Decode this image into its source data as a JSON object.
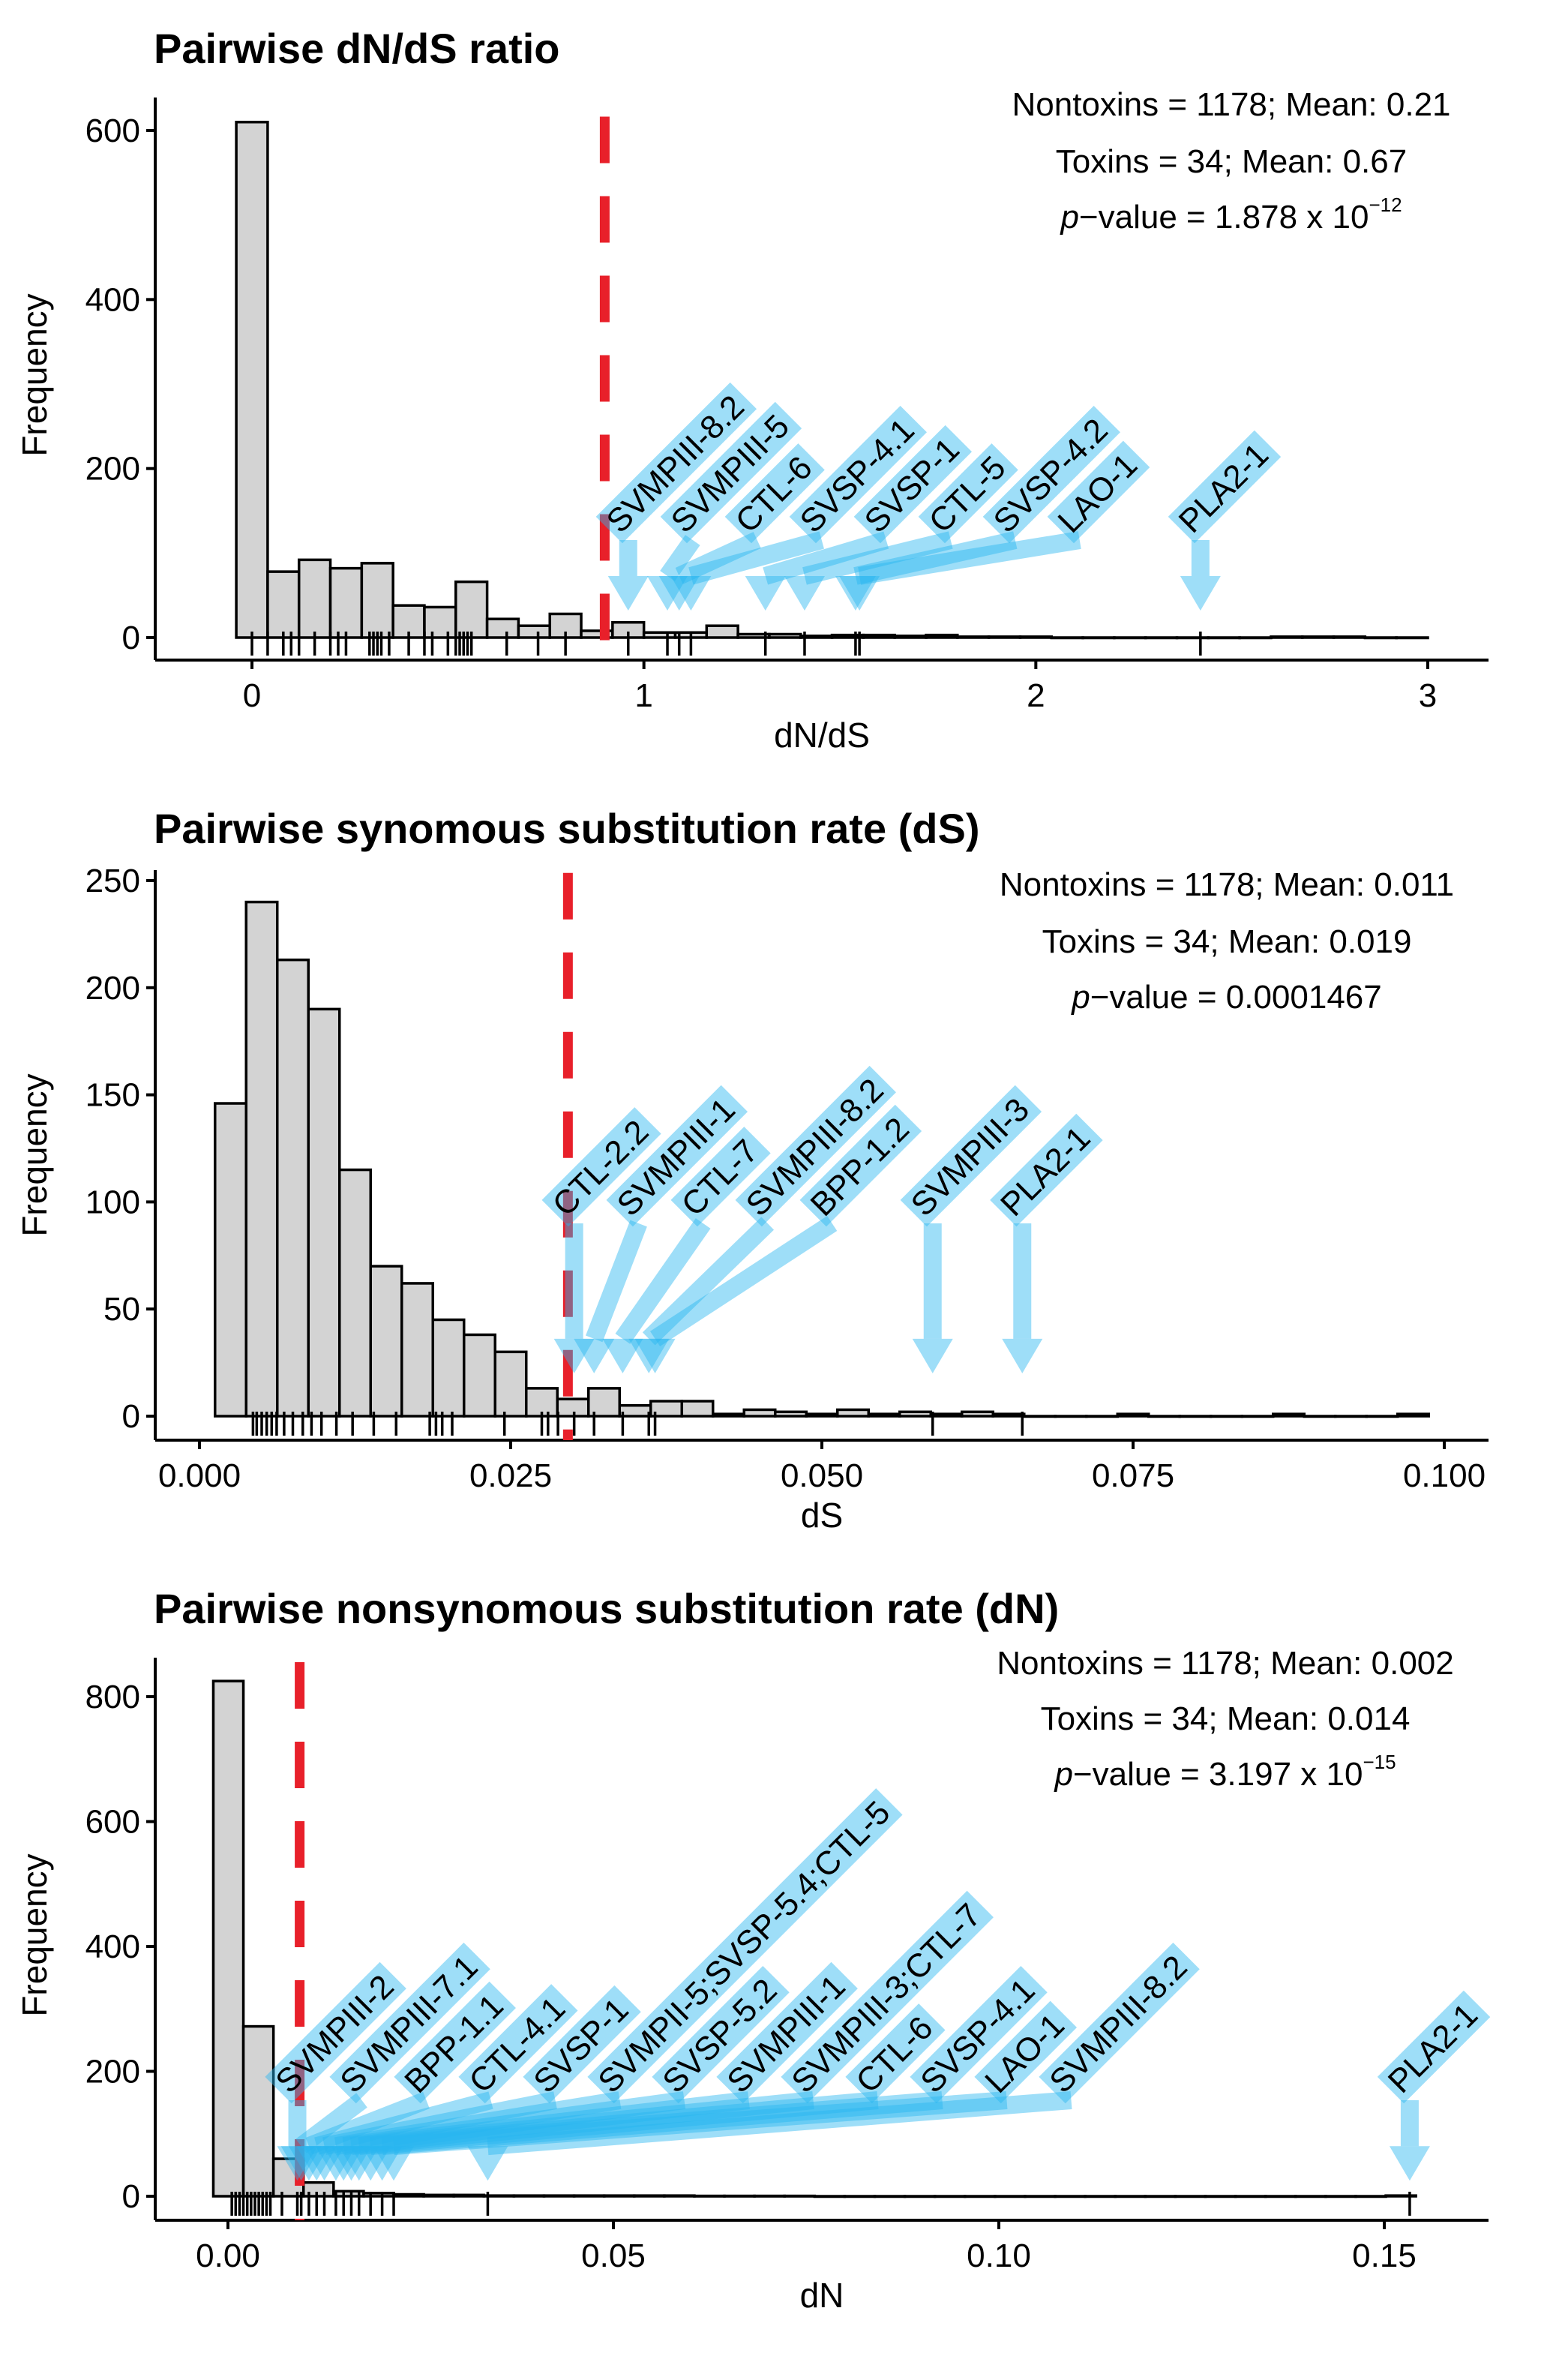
{
  "colors": {
    "bar_fill": "#d3d3d3",
    "bar_stroke": "#000000",
    "mean_line": "#e8202a",
    "arrow": "#29b6ef"
  },
  "chart_data": [
    {
      "type": "bar",
      "title": "Pairwise dN/dS ratio",
      "xlabel": "dN/dS",
      "ylabel": "Frequency",
      "xlim": [
        -0.15,
        3.15
      ],
      "ylim": [
        0,
        620
      ],
      "xticks": [
        0,
        1,
        2,
        3
      ],
      "xtick_labels": [
        "0",
        "1",
        "2",
        "3"
      ],
      "yticks": [
        0,
        200,
        400,
        600
      ],
      "ytick_labels": [
        "0",
        "200",
        "400",
        "600"
      ],
      "bin_start": -0.04,
      "bin_width": 0.08,
      "counts": [
        610,
        78,
        92,
        82,
        88,
        38,
        36,
        66,
        22,
        14,
        28,
        8,
        18,
        6,
        6,
        14,
        4,
        4,
        2,
        3,
        3,
        2,
        3,
        1,
        1,
        1,
        0,
        0,
        0,
        0,
        0,
        0,
        0,
        1,
        1,
        1,
        0,
        0
      ],
      "toxin_mean_line": 0.9,
      "rug": [
        0.0,
        0.04,
        0.08,
        0.1,
        0.12,
        0.16,
        0.2,
        0.22,
        0.24,
        0.3,
        0.31,
        0.32,
        0.33,
        0.35,
        0.4,
        0.44,
        0.46,
        0.5,
        0.52,
        0.53,
        0.54,
        0.55,
        0.56,
        0.65,
        0.73,
        0.8,
        0.96,
        1.06,
        1.09,
        1.12,
        1.31,
        1.41,
        1.54,
        1.55,
        2.42
      ],
      "stats": {
        "line1": "Nontoxins = 1178; Mean: 0.21",
        "line2": "Toxins = 34; Mean: 0.67",
        "p_italic": "p",
        "p_text": "−value = 1.878 x 10",
        "p_exp": "−12"
      },
      "annotations": [
        {
          "label": "SVMPIII-8.2",
          "x": 0.96,
          "tail": 190,
          "tip": 32
        },
        {
          "label": "SVMPIII-5",
          "x": 1.06,
          "tail": 175,
          "tip": 32
        },
        {
          "label": "CTL-6",
          "x": 1.09,
          "tail": 140,
          "tip": 32
        },
        {
          "label": "SVSP-4.1",
          "x": 1.12,
          "tail": 95,
          "tip": 32
        },
        {
          "label": "SVSP-1",
          "x": 1.31,
          "tail": 140,
          "tip": 32
        },
        {
          "label": "CTL-5",
          "x": 1.41,
          "tail": 120,
          "tip": 32
        },
        {
          "label": "SVSP-4.2",
          "x": 1.54,
          "tail": 140,
          "tip": 32
        },
        {
          "label": "LAO-1",
          "x": 1.55,
          "tail": 100,
          "tip": 32
        },
        {
          "label": "PLA2-1",
          "x": 2.42,
          "tail": 100,
          "tip": 32
        }
      ]
    },
    {
      "type": "bar",
      "title": "Pairwise synomous substitution rate (dS)",
      "xlabel": "dS",
      "ylabel": "Frequency",
      "xlim": [
        -0.004,
        0.1
      ],
      "ylim": [
        0,
        255
      ],
      "xticks": [
        0,
        0.025,
        0.05,
        0.075,
        0.1
      ],
      "xtick_labels": [
        "0.000",
        "0.025",
        "0.050",
        "0.075",
        "0.100"
      ],
      "yticks": [
        0,
        50,
        100,
        150,
        200,
        250
      ],
      "ytick_labels": [
        "0",
        "50",
        "100",
        "150",
        "200",
        "250"
      ],
      "bin_start": 0.00125,
      "bin_width": 0.0025,
      "counts": [
        146,
        240,
        213,
        190,
        115,
        70,
        62,
        45,
        38,
        30,
        13,
        8,
        13,
        5,
        7,
        7,
        1,
        3,
        2,
        1,
        3,
        1,
        2,
        1,
        2,
        1,
        0,
        0,
        0,
        1,
        0,
        0,
        0,
        0,
        1,
        0,
        0,
        0,
        1
      ],
      "toxin_mean_line": 0.0296,
      "rug": [
        0.0043,
        0.0046,
        0.005,
        0.0054,
        0.0058,
        0.0062,
        0.0068,
        0.0075,
        0.0083,
        0.009,
        0.0098,
        0.011,
        0.0123,
        0.014,
        0.0158,
        0.0185,
        0.019,
        0.0195,
        0.0203,
        0.0245,
        0.0275,
        0.028,
        0.0288,
        0.0301,
        0.0317,
        0.034,
        0.0361,
        0.0366,
        0.0589,
        0.0661
      ],
      "stats": {
        "line1": "Nontoxins = 1178; Mean: 0.011",
        "line2": "Toxins = 34; Mean: 0.019",
        "p_italic": "p",
        "p_text": "−value = 0.0001467",
        "p_exp": ""
      },
      "annotations": [
        {
          "label": "CTL-2.2",
          "x": 0.0301,
          "tail": 85,
          "tip": 20
        },
        {
          "label": "SVMPIII-1",
          "x": 0.0317,
          "tail": 70,
          "tip": 20
        },
        {
          "label": "CTL-7",
          "x": 0.034,
          "tail": 85,
          "tip": 20
        },
        {
          "label": "SVMPIII-8.2",
          "x": 0.0361,
          "tail": 75,
          "tip": 20
        },
        {
          "label": "BPP-1.2",
          "x": 0.0366,
          "tail": 40,
          "tip": 20
        },
        {
          "label": "SVMPIII-3",
          "x": 0.0589,
          "tail": 40,
          "tip": 20
        },
        {
          "label": "PLA2-1",
          "x": 0.0661,
          "tail": 40,
          "tip": 20
        }
      ]
    },
    {
      "type": "bar",
      "title": "Pairwise nonsynomous substitution rate (dN)",
      "xlabel": "dN",
      "ylabel": "Frequency",
      "xlim": [
        -0.009,
        0.163
      ],
      "ylim": [
        0,
        860
      ],
      "xticks": [
        0,
        0.05,
        0.1,
        0.15
      ],
      "xtick_labels": [
        "0.00",
        "0.05",
        "0.10",
        "0.15"
      ],
      "yticks": [
        0,
        200,
        400,
        600,
        800
      ],
      "ytick_labels": [
        "0",
        "200",
        "400",
        "600",
        "800"
      ],
      "bin_start": -0.0019,
      "bin_width": 0.0039,
      "counts": [
        825,
        272,
        60,
        22,
        8,
        5,
        3,
        2,
        2,
        1,
        1,
        1,
        1,
        1,
        1,
        1,
        0.5,
        0.5,
        0.5,
        0.5,
        0,
        0,
        0,
        0,
        0,
        0,
        0,
        0,
        0,
        0,
        0,
        0,
        0,
        0,
        0,
        0,
        0,
        0,
        0,
        1
      ],
      "toxin_mean_line": 0.0093,
      "rug": [
        0.0005,
        0.001,
        0.0015,
        0.002,
        0.0025,
        0.003,
        0.0035,
        0.004,
        0.0045,
        0.005,
        0.0055,
        0.007,
        0.009,
        0.0095,
        0.0105,
        0.0115,
        0.0125,
        0.014,
        0.015,
        0.016,
        0.017,
        0.0185,
        0.02,
        0.0215,
        0.0337,
        0.1533
      ],
      "stats": {
        "line1": "Nontoxins = 1178; Mean: 0.002",
        "line2": "Toxins = 34; Mean: 0.014",
        "p_italic": "p",
        "p_text": "−value = 3.197 x 10",
        "p_exp": "−15"
      },
      "annotations": [
        {
          "label": "SVMPIII-2",
          "x": 0.009,
          "tail": 700,
          "tip": 25
        },
        {
          "label": "SVMPIII-7.1",
          "x": 0.0095,
          "tail": 640,
          "tip": 25
        },
        {
          "label": "BPP-1.1",
          "x": 0.0105,
          "tail": 590,
          "tip": 25
        },
        {
          "label": "CTL-4.1",
          "x": 0.0115,
          "tail": 518,
          "tip": 25
        },
        {
          "label": "SVSP-1",
          "x": 0.0125,
          "tail": 462,
          "tip": 25
        },
        {
          "label": "SVMPII-5;SVSP-5.4;CTL-5",
          "x": 0.014,
          "tail": 425,
          "tip": 25
        },
        {
          "label": "SVSP-5.2",
          "x": 0.015,
          "tail": 383,
          "tip": 25
        },
        {
          "label": "SVMPIII-1",
          "x": 0.016,
          "tail": 346,
          "tip": 25
        },
        {
          "label": "SVMPIII-3;CTL-7",
          "x": 0.017,
          "tail": 290,
          "tip": 25
        },
        {
          "label": "CTL-6",
          "x": 0.0185,
          "tail": 211,
          "tip": 25
        },
        {
          "label": "SVSP-4.1",
          "x": 0.02,
          "tail": 168,
          "tip": 25
        },
        {
          "label": "LAO-1",
          "x": 0.0215,
          "tail": 100,
          "tip": 25
        },
        {
          "label": "SVMPIII-8.2",
          "x": 0.0337,
          "tail": 100,
          "tip": 25
        },
        {
          "label": "PLA2-1",
          "x": 0.1533,
          "tail": 100,
          "tip": 25
        }
      ]
    }
  ]
}
